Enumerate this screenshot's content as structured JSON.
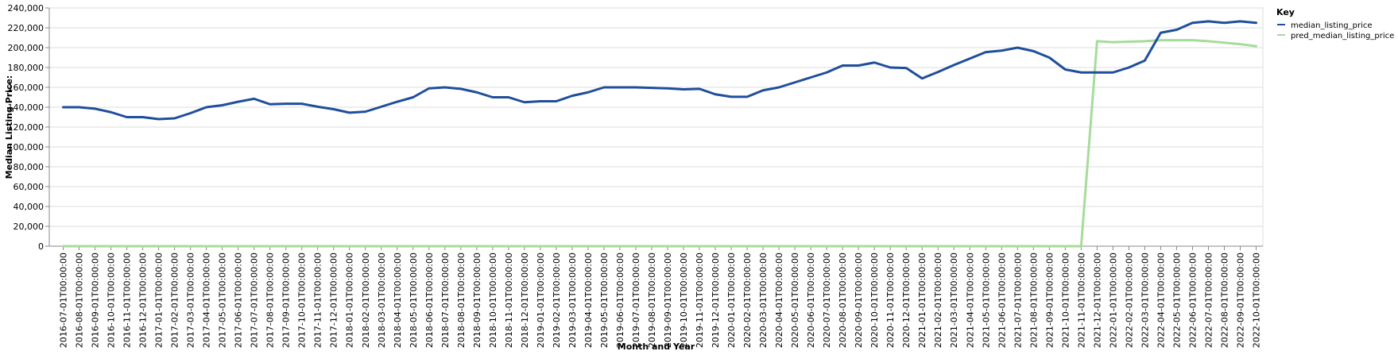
{
  "chart_data": {
    "type": "line",
    "title": "",
    "xlabel": "Month and Year",
    "ylabel": "Median Listing Price:",
    "ylim": [
      0,
      240000
    ],
    "yticks": [
      0,
      20000,
      40000,
      60000,
      80000,
      100000,
      120000,
      140000,
      160000,
      180000,
      200000,
      220000,
      240000
    ],
    "grid": true,
    "legend": {
      "title": "Key",
      "position": "top-right"
    },
    "x": [
      "2016-07-01T00:00:00",
      "2016-08-01T00:00:00",
      "2016-09-01T00:00:00",
      "2016-10-01T00:00:00",
      "2016-11-01T00:00:00",
      "2016-12-01T00:00:00",
      "2017-01-01T00:00:00",
      "2017-02-01T00:00:00",
      "2017-03-01T00:00:00",
      "2017-04-01T00:00:00",
      "2017-05-01T00:00:00",
      "2017-06-01T00:00:00",
      "2017-07-01T00:00:00",
      "2017-08-01T00:00:00",
      "2017-09-01T00:00:00",
      "2017-10-01T00:00:00",
      "2017-11-01T00:00:00",
      "2017-12-01T00:00:00",
      "2018-01-01T00:00:00",
      "2018-02-01T00:00:00",
      "2018-03-01T00:00:00",
      "2018-04-01T00:00:00",
      "2018-05-01T00:00:00",
      "2018-06-01T00:00:00",
      "2018-07-01T00:00:00",
      "2018-08-01T00:00:00",
      "2018-09-01T00:00:00",
      "2018-10-01T00:00:00",
      "2018-11-01T00:00:00",
      "2018-12-01T00:00:00",
      "2019-01-01T00:00:00",
      "2019-02-01T00:00:00",
      "2019-03-01T00:00:00",
      "2019-04-01T00:00:00",
      "2019-05-01T00:00:00",
      "2019-06-01T00:00:00",
      "2019-07-01T00:00:00",
      "2019-08-01T00:00:00",
      "2019-09-01T00:00:00",
      "2019-10-01T00:00:00",
      "2019-11-01T00:00:00",
      "2019-12-01T00:00:00",
      "2020-01-01T00:00:00",
      "2020-02-01T00:00:00",
      "2020-03-01T00:00:00",
      "2020-04-01T00:00:00",
      "2020-05-01T00:00:00",
      "2020-06-01T00:00:00",
      "2020-07-01T00:00:00",
      "2020-08-01T00:00:00",
      "2020-09-01T00:00:00",
      "2020-10-01T00:00:00",
      "2020-11-01T00:00:00",
      "2020-12-01T00:00:00",
      "2021-01-01T00:00:00",
      "2021-02-01T00:00:00",
      "2021-03-01T00:00:00",
      "2021-04-01T00:00:00",
      "2021-05-01T00:00:00",
      "2021-06-01T00:00:00",
      "2021-07-01T00:00:00",
      "2021-08-01T00:00:00",
      "2021-09-01T00:00:00",
      "2021-10-01T00:00:00",
      "2021-11-01T00:00:00",
      "2021-12-01T00:00:00",
      "2022-01-01T00:00:00",
      "2022-02-01T00:00:00",
      "2022-03-01T00:00:00",
      "2022-04-01T00:00:00",
      "2022-05-01T00:00:00",
      "2022-06-01T00:00:00",
      "2022-07-01T00:00:00",
      "2022-08-01T00:00:00",
      "2022-09-01T00:00:00",
      "2022-10-01T00:00:00"
    ],
    "series": [
      {
        "name": "median_listing_price",
        "color": "#1f4e9c",
        "values": [
          140000,
          140000,
          138500,
          135000,
          130000,
          130000,
          128000,
          128800,
          134000,
          140000,
          142000,
          145500,
          148500,
          143000,
          143500,
          143500,
          140500,
          138000,
          134500,
          135500,
          140500,
          145500,
          150000,
          159000,
          160000,
          158500,
          155000,
          150000,
          150000,
          145000,
          146000,
          146000,
          151500,
          155000,
          160000,
          160000,
          160000,
          159500,
          159000,
          158000,
          158500,
          153000,
          150500,
          150500,
          157000,
          160000,
          165000,
          170000,
          175000,
          182000,
          182000,
          185000,
          180000,
          179500,
          169000,
          175500,
          182500,
          189000,
          195500,
          197000,
          200000,
          196500,
          190000,
          178000,
          175000,
          175000,
          175000,
          180000,
          187000,
          215000,
          218000,
          225000,
          226500,
          225000,
          226500,
          225000
        ]
      },
      {
        "name": "pred_median_listing_price",
        "color": "#a6dc9b",
        "values": [
          0,
          0,
          0,
          0,
          0,
          0,
          0,
          0,
          0,
          0,
          0,
          0,
          0,
          0,
          0,
          0,
          0,
          0,
          0,
          0,
          0,
          0,
          0,
          0,
          0,
          0,
          0,
          0,
          0,
          0,
          0,
          0,
          0,
          0,
          0,
          0,
          0,
          0,
          0,
          0,
          0,
          0,
          0,
          0,
          0,
          0,
          0,
          0,
          0,
          0,
          0,
          0,
          0,
          0,
          0,
          0,
          0,
          0,
          0,
          0,
          0,
          0,
          0,
          0,
          0,
          206500,
          205500,
          206000,
          206500,
          207500,
          207500,
          207500,
          206500,
          205000,
          203500,
          201500
        ]
      }
    ]
  }
}
